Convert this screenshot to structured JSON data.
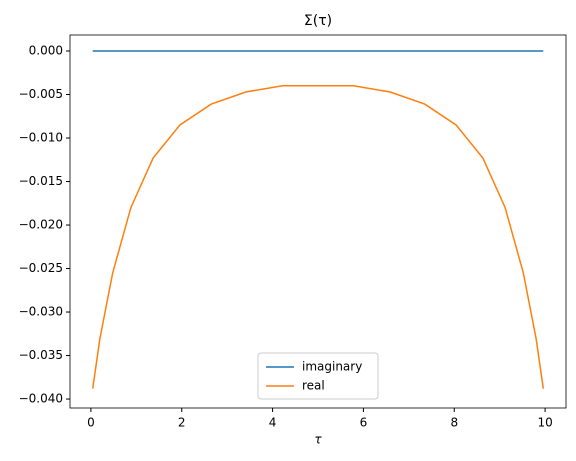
{
  "chart_data": {
    "type": "line",
    "title": "Σ(τ)",
    "x_label": "τ",
    "x": [
      0.04,
      0.2,
      0.48,
      0.88,
      1.37,
      1.96,
      2.65,
      3.42,
      4.22,
      5.78,
      6.58,
      7.35,
      8.04,
      8.63,
      9.12,
      9.52,
      9.8,
      9.96
    ],
    "series": [
      {
        "name": "imaginary",
        "color": "#1f77b4",
        "values": [
          0,
          0,
          0,
          0,
          0,
          0,
          0,
          0,
          0,
          0,
          0,
          0,
          0,
          0,
          0,
          0,
          0,
          0
        ]
      },
      {
        "name": "real",
        "color": "#ff7f0e",
        "values": [
          -0.0388,
          -0.033,
          -0.0255,
          -0.018,
          -0.0123,
          -0.0085,
          -0.0061,
          -0.0047,
          -0.004,
          -0.004,
          -0.0047,
          -0.0061,
          -0.0085,
          -0.0123,
          -0.018,
          -0.0255,
          -0.033,
          -0.0388
        ]
      }
    ],
    "xlim": [
      -0.46,
      10.46
    ],
    "ylim": [
      -0.04103,
      0.00184
    ],
    "xticks": [
      0,
      2,
      4,
      6,
      8,
      10
    ],
    "yticks": [
      {
        "value": 0,
        "label": "0.000"
      },
      {
        "value": -0.005,
        "label": "−0.005"
      },
      {
        "value": -0.01,
        "label": "−0.010"
      },
      {
        "value": -0.015,
        "label": "−0.015"
      },
      {
        "value": -0.02,
        "label": "−0.020"
      },
      {
        "value": -0.025,
        "label": "−0.025"
      },
      {
        "value": -0.03,
        "label": "−0.030"
      },
      {
        "value": -0.035,
        "label": "−0.035"
      },
      {
        "value": -0.04,
        "label": "−0.040"
      }
    ],
    "grid": false,
    "legend": "lower center"
  }
}
